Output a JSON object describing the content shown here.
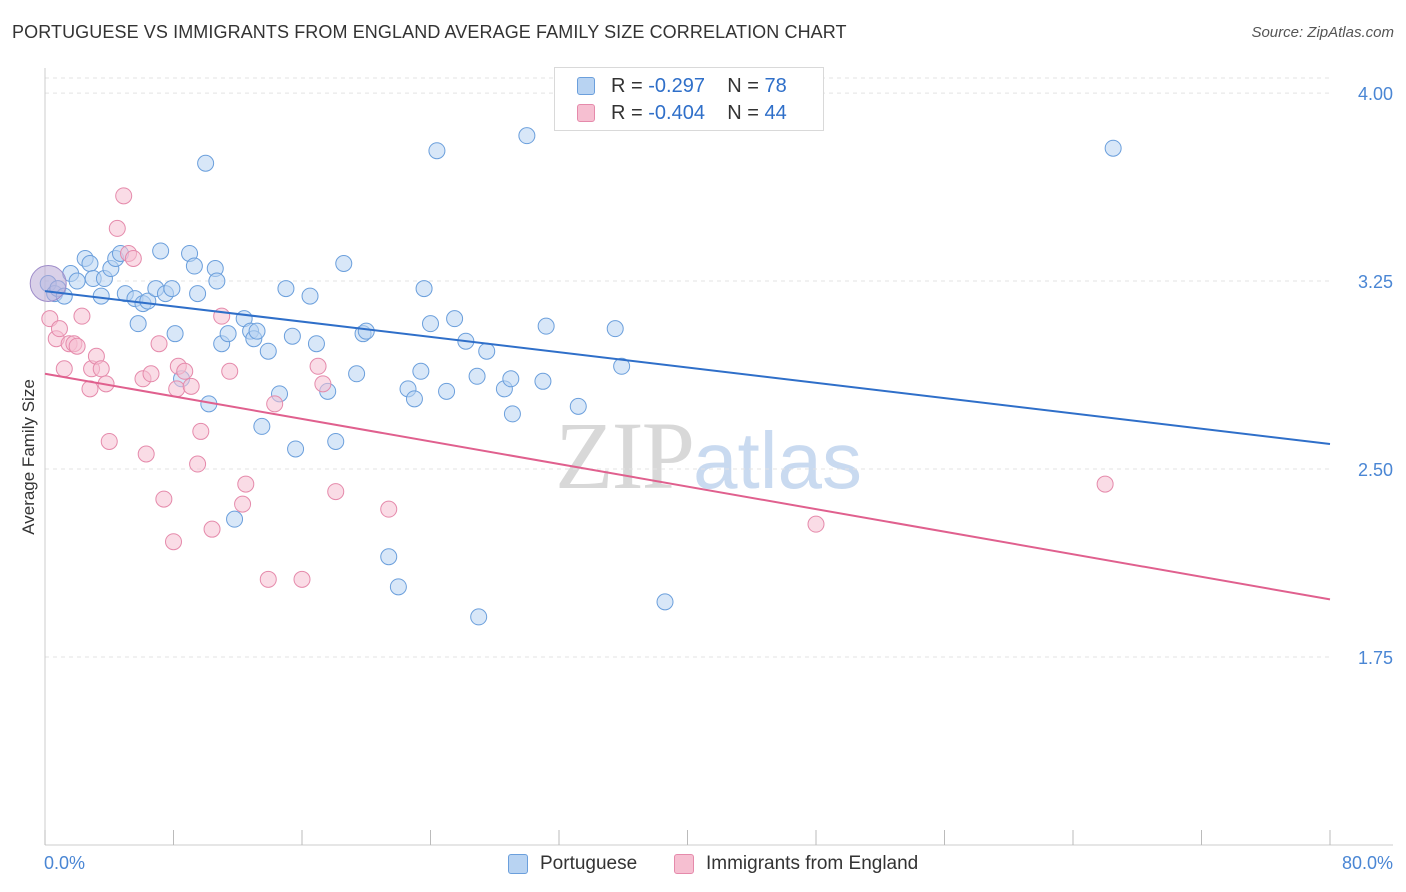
{
  "title": "PORTUGUESE VS IMMIGRANTS FROM ENGLAND AVERAGE FAMILY SIZE CORRELATION CHART",
  "source": "Source: ZipAtlas.com",
  "watermark": {
    "zip": "ZIP",
    "atlas": "atlas"
  },
  "colors": {
    "blue": "#2f6fc9",
    "blue_fill": "#b8d3f2",
    "pink": "#e0608e",
    "pink_fill": "#f6bfd1",
    "grid": "#e3e3e3",
    "tick_label": "#4a86d4"
  },
  "legend": {
    "rows": [
      {
        "r_label": "R =",
        "r_value": "-0.297",
        "n_label": "N =",
        "n_value": "78"
      },
      {
        "r_label": "R =",
        "r_value": "-0.404",
        "n_label": "N =",
        "n_value": "44"
      }
    ]
  },
  "bottom_legend": {
    "portuguese": "Portuguese",
    "england": "Immigrants from England"
  },
  "chart_data": {
    "type": "scatter",
    "title": "PORTUGUESE VS IMMIGRANTS FROM ENGLAND AVERAGE FAMILY SIZE CORRELATION CHART",
    "xlabel": "",
    "ylabel": "Average Family Size",
    "xlim": [
      0,
      80
    ],
    "ylim": [
      1.0,
      4.1
    ],
    "x_tick_labels": [
      "0.0%",
      "80.0%"
    ],
    "y_ticks": [
      1.75,
      2.5,
      3.25,
      4.0
    ],
    "y_tick_labels": [
      "1.75",
      "2.50",
      "3.25",
      "4.00"
    ],
    "grid": true,
    "legend_position": "top-center",
    "series": [
      {
        "name": "Portuguese",
        "color": "#2f6fc9",
        "trend": {
          "x": [
            0,
            80
          ],
          "y": [
            3.21,
            2.6
          ]
        },
        "points": [
          [
            0.2,
            3.24
          ],
          [
            0.6,
            3.2
          ],
          [
            0.8,
            3.22
          ],
          [
            1.2,
            3.19
          ],
          [
            1.6,
            3.28
          ],
          [
            2.0,
            3.25
          ],
          [
            2.5,
            3.34
          ],
          [
            2.8,
            3.32
          ],
          [
            3.0,
            3.26
          ],
          [
            3.5,
            3.19
          ],
          [
            3.7,
            3.26
          ],
          [
            4.1,
            3.3
          ],
          [
            4.4,
            3.34
          ],
          [
            4.7,
            3.36
          ],
          [
            5.0,
            3.2
          ],
          [
            5.6,
            3.18
          ],
          [
            5.8,
            3.08
          ],
          [
            6.1,
            3.16
          ],
          [
            6.4,
            3.17
          ],
          [
            6.9,
            3.22
          ],
          [
            7.2,
            3.37
          ],
          [
            7.5,
            3.2
          ],
          [
            7.9,
            3.22
          ],
          [
            8.1,
            3.04
          ],
          [
            8.5,
            2.86
          ],
          [
            9.0,
            3.36
          ],
          [
            9.3,
            3.31
          ],
          [
            9.5,
            3.2
          ],
          [
            10.0,
            3.72
          ],
          [
            10.2,
            2.76
          ],
          [
            10.6,
            3.3
          ],
          [
            10.7,
            3.25
          ],
          [
            11.0,
            3.0
          ],
          [
            11.4,
            3.04
          ],
          [
            11.8,
            2.3
          ],
          [
            12.4,
            3.1
          ],
          [
            12.8,
            3.05
          ],
          [
            13.0,
            3.02
          ],
          [
            13.2,
            3.05
          ],
          [
            13.5,
            2.67
          ],
          [
            13.9,
            2.97
          ],
          [
            14.6,
            2.8
          ],
          [
            15.0,
            3.22
          ],
          [
            15.4,
            3.03
          ],
          [
            15.6,
            2.58
          ],
          [
            16.5,
            3.19
          ],
          [
            16.9,
            3.0
          ],
          [
            17.6,
            2.81
          ],
          [
            18.1,
            2.61
          ],
          [
            18.6,
            3.32
          ],
          [
            19.4,
            2.88
          ],
          [
            19.8,
            3.04
          ],
          [
            20.0,
            3.05
          ],
          [
            21.4,
            2.15
          ],
          [
            22.0,
            2.03
          ],
          [
            22.6,
            2.82
          ],
          [
            23.0,
            2.78
          ],
          [
            23.4,
            2.89
          ],
          [
            23.6,
            3.22
          ],
          [
            24.0,
            3.08
          ],
          [
            24.4,
            3.77
          ],
          [
            25.0,
            2.81
          ],
          [
            25.5,
            3.1
          ],
          [
            26.2,
            3.01
          ],
          [
            26.9,
            2.87
          ],
          [
            27.0,
            1.91
          ],
          [
            27.5,
            2.97
          ],
          [
            28.6,
            2.82
          ],
          [
            29.0,
            2.86
          ],
          [
            29.1,
            2.72
          ],
          [
            30.0,
            3.83
          ],
          [
            31.0,
            2.85
          ],
          [
            31.2,
            3.07
          ],
          [
            33.2,
            2.75
          ],
          [
            35.5,
            3.06
          ],
          [
            35.9,
            2.91
          ],
          [
            38.6,
            1.97
          ],
          [
            66.5,
            3.78
          ]
        ]
      },
      {
        "name": "Immigrants from England",
        "color": "#e0608e",
        "trend": {
          "x": [
            0,
            80
          ],
          "y": [
            2.88,
            1.98
          ]
        },
        "points": [
          [
            0.3,
            3.1
          ],
          [
            0.7,
            3.02
          ],
          [
            0.9,
            3.06
          ],
          [
            1.2,
            2.9
          ],
          [
            1.5,
            3.0
          ],
          [
            1.8,
            3.0
          ],
          [
            2.0,
            2.99
          ],
          [
            2.3,
            3.11
          ],
          [
            2.8,
            2.82
          ],
          [
            2.9,
            2.9
          ],
          [
            3.2,
            2.95
          ],
          [
            3.5,
            2.9
          ],
          [
            3.8,
            2.84
          ],
          [
            4.0,
            2.61
          ],
          [
            4.5,
            3.46
          ],
          [
            4.9,
            3.59
          ],
          [
            5.2,
            3.36
          ],
          [
            5.5,
            3.34
          ],
          [
            6.1,
            2.86
          ],
          [
            6.3,
            2.56
          ],
          [
            6.6,
            2.88
          ],
          [
            7.1,
            3.0
          ],
          [
            7.4,
            2.38
          ],
          [
            8.0,
            2.21
          ],
          [
            8.2,
            2.82
          ],
          [
            8.3,
            2.91
          ],
          [
            8.7,
            2.89
          ],
          [
            9.1,
            2.83
          ],
          [
            9.5,
            2.52
          ],
          [
            9.7,
            2.65
          ],
          [
            10.4,
            2.26
          ],
          [
            11.0,
            3.11
          ],
          [
            11.5,
            2.89
          ],
          [
            12.3,
            2.36
          ],
          [
            12.5,
            2.44
          ],
          [
            13.9,
            2.06
          ],
          [
            14.3,
            2.76
          ],
          [
            16.0,
            2.06
          ],
          [
            17.0,
            2.91
          ],
          [
            17.3,
            2.84
          ],
          [
            18.1,
            2.41
          ],
          [
            21.4,
            2.34
          ],
          [
            48.0,
            2.28
          ],
          [
            66.0,
            2.44
          ]
        ]
      }
    ]
  }
}
